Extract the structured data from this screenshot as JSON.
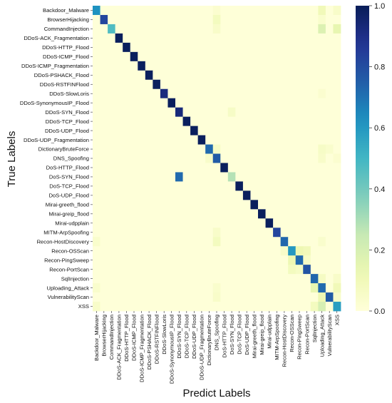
{
  "chart_data": {
    "type": "heatmap",
    "title": "",
    "xlabel": "Predict Labels",
    "ylabel": "True Labels",
    "labels": [
      "Backdoor_Malware",
      "BrowserHijacking",
      "CommandInjection",
      "DDoS-ACK_Fragmentation",
      "DDoS-HTTP_Flood",
      "DDoS-ICMP_Flood",
      "DDoS-ICMP_Fragmentation",
      "DDoS-PSHACK_Flood",
      "DDoS-RSTFINFlood",
      "DDoS-SlowLoris",
      "DDoS-SynonymousIP_Flood",
      "DDoS-SYN_Flood",
      "DDoS-TCP_Flood",
      "DDoS-UDP_Flood",
      "DDoS-UDP_Fragmentation",
      "DictionaryBruteForce",
      "DNS_Spoofing",
      "DoS-HTTP_Flood",
      "DoS-SYN_Flood",
      "DoS-TCP_Flood",
      "DoS-UDP_Flood",
      "Mirai-greeth_flood",
      "Mirai-greip_flood",
      "Mirai-udpplain",
      "MITM-ArpSpoofing",
      "Recon-HostDiscovery",
      "Recon-OSScan",
      "Recon-PingSweep",
      "Recon-PortScan",
      "SqlInjection",
      "Uploading_Attack",
      "VulnerabilityScan",
      "XSS"
    ],
    "diagonal": [
      0.62,
      0.82,
      0.47,
      0.99,
      0.99,
      0.99,
      0.99,
      0.99,
      0.99,
      0.92,
      0.99,
      0.93,
      0.99,
      0.99,
      0.99,
      0.72,
      0.76,
      0.99,
      0.28,
      0.99,
      0.99,
      0.99,
      0.99,
      0.99,
      0.82,
      0.73,
      0.6,
      0.72,
      0.78,
      0.73,
      0.72,
      0.76,
      0.58
    ],
    "off_diagonal": [
      {
        "row": 0,
        "col": 30,
        "value": 0.1
      },
      {
        "row": 0,
        "col": 32,
        "value": 0.05
      },
      {
        "row": 0,
        "col": 16,
        "value": 0.03
      },
      {
        "row": 1,
        "col": 16,
        "value": 0.08
      },
      {
        "row": 1,
        "col": 30,
        "value": 0.04
      },
      {
        "row": 2,
        "col": 30,
        "value": 0.18
      },
      {
        "row": 2,
        "col": 32,
        "value": 0.14
      },
      {
        "row": 2,
        "col": 16,
        "value": 0.05
      },
      {
        "row": 9,
        "col": 30,
        "value": 0.03
      },
      {
        "row": 11,
        "col": 18,
        "value": 0.06
      },
      {
        "row": 15,
        "col": 16,
        "value": 0.06
      },
      {
        "row": 15,
        "col": 30,
        "value": 0.06
      },
      {
        "row": 15,
        "col": 31,
        "value": 0.04
      },
      {
        "row": 16,
        "col": 15,
        "value": 0.05
      },
      {
        "row": 16,
        "col": 30,
        "value": 0.05
      },
      {
        "row": 16,
        "col": 32,
        "value": 0.03
      },
      {
        "row": 18,
        "col": 11,
        "value": 0.72
      },
      {
        "row": 24,
        "col": 16,
        "value": 0.05
      },
      {
        "row": 25,
        "col": 16,
        "value": 0.08
      },
      {
        "row": 25,
        "col": 0,
        "value": 0.04
      },
      {
        "row": 25,
        "col": 30,
        "value": 0.04
      },
      {
        "row": 26,
        "col": 27,
        "value": 0.12
      },
      {
        "row": 26,
        "col": 28,
        "value": 0.1
      },
      {
        "row": 26,
        "col": 25,
        "value": 0.05
      },
      {
        "row": 27,
        "col": 26,
        "value": 0.12
      },
      {
        "row": 27,
        "col": 28,
        "value": 0.06
      },
      {
        "row": 28,
        "col": 26,
        "value": 0.08
      },
      {
        "row": 28,
        "col": 27,
        "value": 0.06
      },
      {
        "row": 29,
        "col": 30,
        "value": 0.07
      },
      {
        "row": 29,
        "col": 32,
        "value": 0.05
      },
      {
        "row": 30,
        "col": 29,
        "value": 0.14
      },
      {
        "row": 30,
        "col": 32,
        "value": 0.1
      },
      {
        "row": 30,
        "col": 16,
        "value": 0.04
      },
      {
        "row": 30,
        "col": 0,
        "value": 0.04
      },
      {
        "row": 31,
        "col": 30,
        "value": 0.12
      },
      {
        "row": 31,
        "col": 32,
        "value": 0.05
      },
      {
        "row": 31,
        "col": 16,
        "value": 0.05
      },
      {
        "row": 32,
        "col": 30,
        "value": 0.2
      },
      {
        "row": 32,
        "col": 29,
        "value": 0.08
      },
      {
        "row": 32,
        "col": 0,
        "value": 0.05
      }
    ],
    "colorbar": {
      "colormap": "YlGnBu",
      "range": [
        0,
        1
      ],
      "ticks": [
        {
          "value": 0.0,
          "label": "0.0"
        },
        {
          "value": 0.2,
          "label": "0.2"
        },
        {
          "value": 0.4,
          "label": "0.4"
        },
        {
          "value": 0.6,
          "label": "0.6"
        },
        {
          "value": 0.8,
          "label": "0.8"
        },
        {
          "value": 1.0,
          "label": "1.0"
        }
      ]
    }
  }
}
